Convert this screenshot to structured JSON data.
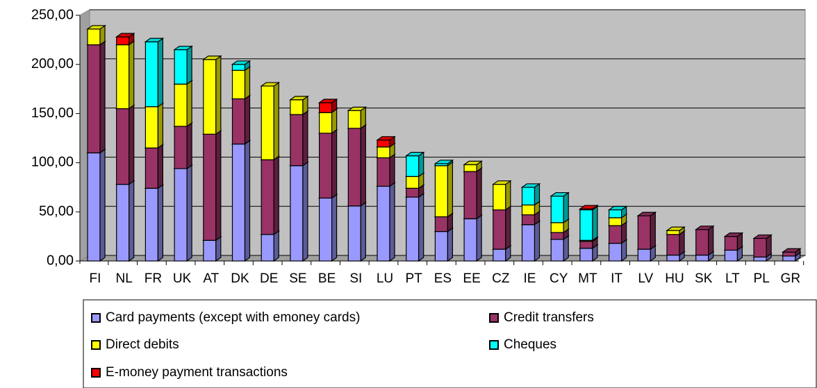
{
  "chart_data": {
    "type": "bar",
    "stacked": true,
    "categories": [
      "FI",
      "NL",
      "FR",
      "UK",
      "AT",
      "DK",
      "DE",
      "SE",
      "BE",
      "SI",
      "LU",
      "PT",
      "ES",
      "EE",
      "CZ",
      "IE",
      "CY",
      "MT",
      "IT",
      "LV",
      "HU",
      "SK",
      "LT",
      "PL",
      "GR"
    ],
    "series": [
      {
        "name": "Card payments (except with emoney cards)",
        "color": "#9999ff",
        "values": [
          110,
          78,
          74,
          94,
          21,
          119,
          27,
          97,
          64,
          56,
          76,
          65,
          30,
          43,
          12,
          37,
          22,
          13,
          18,
          12,
          6,
          6,
          11,
          4,
          5
        ]
      },
      {
        "name": "Credit transfers",
        "color": "#993366",
        "values": [
          110,
          77,
          41,
          43,
          108,
          46,
          76,
          52,
          66,
          79,
          29,
          9,
          15,
          48,
          40,
          10,
          7,
          7,
          18,
          34,
          21,
          26,
          14,
          19,
          4
        ]
      },
      {
        "name": "Direct debits",
        "color": "#ffff00",
        "values": [
          16,
          65,
          42,
          43,
          76,
          29,
          75,
          15,
          21,
          18,
          11,
          12,
          52,
          7,
          26,
          10,
          10,
          1,
          8,
          0,
          4,
          0,
          0,
          0,
          0
        ]
      },
      {
        "name": "Cheques",
        "color": "#00ffff",
        "values": [
          0,
          0,
          66,
          35,
          0,
          6,
          0,
          0,
          0,
          0,
          0,
          21,
          2,
          0,
          0,
          18,
          27,
          31,
          8,
          0,
          0,
          0,
          0,
          0,
          0
        ]
      },
      {
        "name": "E-money payment transactions",
        "color": "#ff0000",
        "values": [
          0,
          8,
          0,
          0,
          0,
          0,
          0,
          0,
          10,
          0,
          7,
          0,
          0,
          0,
          0,
          0,
          0,
          1,
          0,
          0,
          0,
          0,
          0,
          0,
          0
        ]
      }
    ],
    "ylim": [
      0,
      250
    ],
    "yticks": [
      {
        "value": 0,
        "label": "0,00"
      },
      {
        "value": 50,
        "label": "50,00"
      },
      {
        "value": 100,
        "label": "100,00"
      },
      {
        "value": 150,
        "label": "150,00"
      },
      {
        "value": 200,
        "label": "200,00"
      },
      {
        "value": 250,
        "label": "250,00"
      }
    ],
    "grid": true
  }
}
